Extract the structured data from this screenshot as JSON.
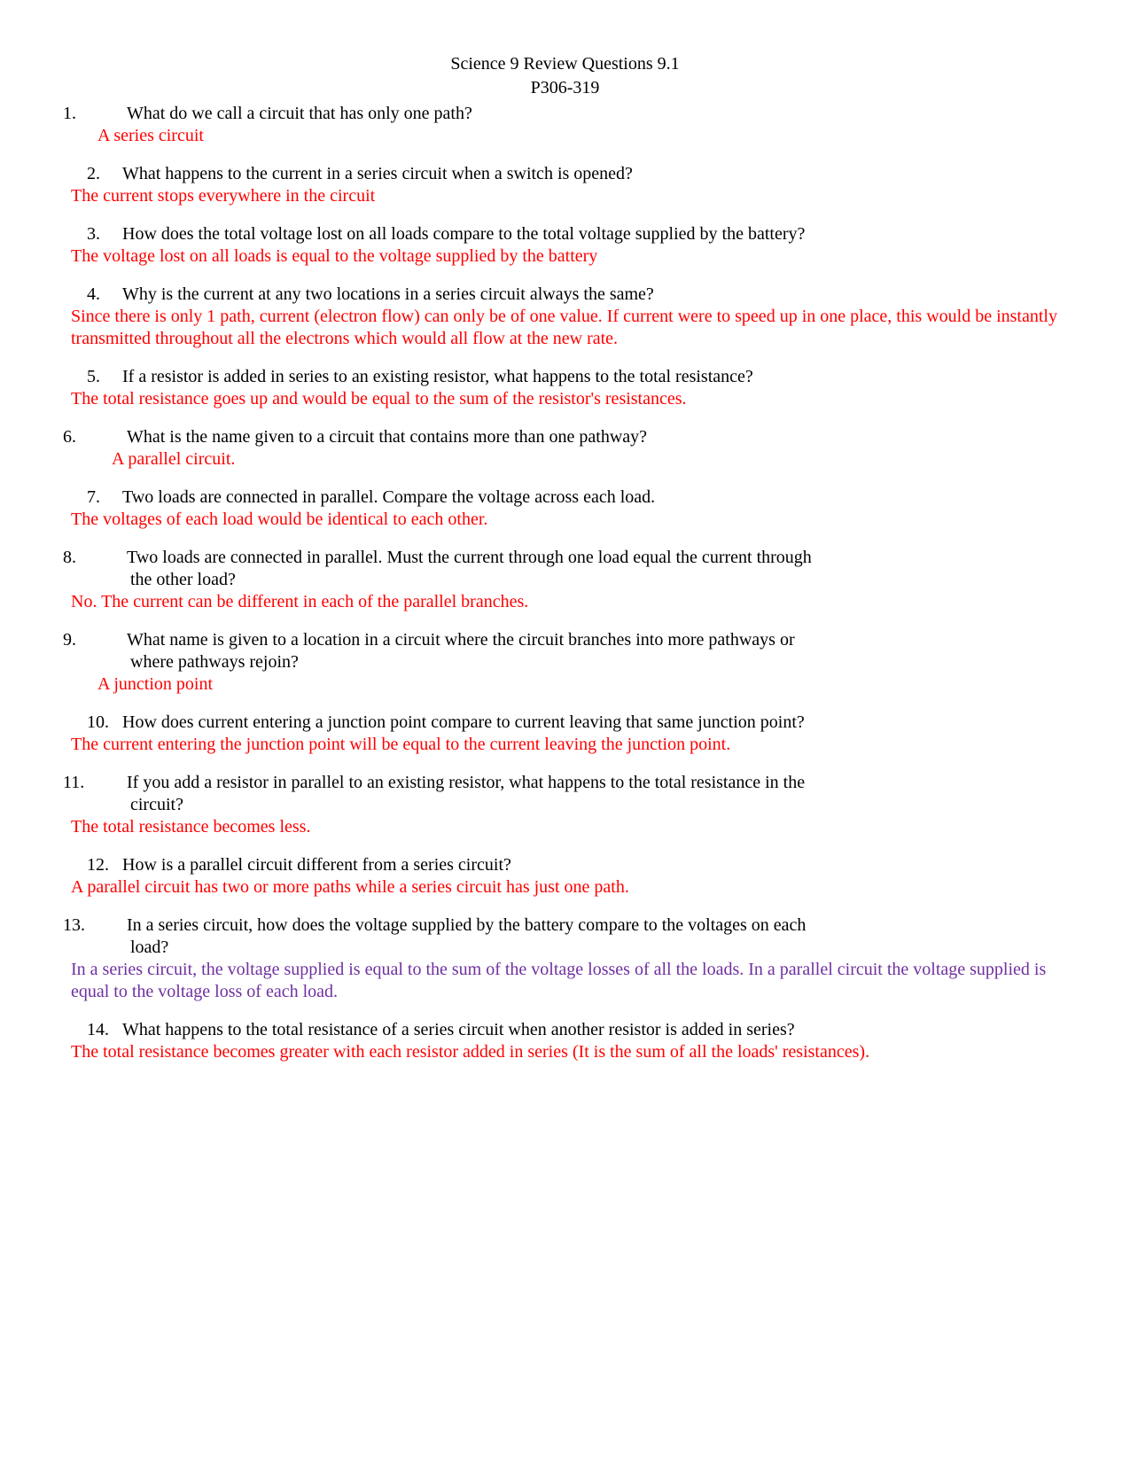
{
  "title": "Science 9 Review Questions 9.1",
  "subtitle": "P306-319",
  "items": [
    {
      "num": "1.",
      "q": "What do we call a circuit that has only one path?",
      "a": "A series circuit",
      "q_indent": "indent-more",
      "a_indent": "indent-a"
    },
    {
      "num": "2.",
      "q": "What happens to the current in a series circuit when a switch is opened?",
      "a": "The current stops everywhere in the circuit",
      "q_indent": "question-line",
      "a_indent": ""
    },
    {
      "num": "3.",
      "q": "How does the total voltage lost on all loads compare to the total voltage supplied by the battery?",
      "a": "The voltage lost on all loads is equal to the voltage supplied by the battery",
      "q_indent": "question-line",
      "a_indent": ""
    },
    {
      "num": "4.",
      "q": "Why is the current at any two locations in a series circuit always the same?",
      "a": "Since there is only 1 path, current (electron flow) can only be of one value.  If current were to speed up in one place, this would be instantly transmitted throughout all the electrons which would all flow at the new rate.",
      "q_indent": "question-line",
      "a_indent": ""
    },
    {
      "num": "5.",
      "q": "If a resistor is added in series to an existing resistor, what happens to the total resistance?",
      "a": "The total resistance goes up and would be equal to the sum of the resistor's resistances.",
      "q_indent": "question-line",
      "a_indent": ""
    },
    {
      "num": "6.",
      "q": "What is the name given to a circuit that contains more than one pathway?",
      "a": "A parallel circuit.",
      "q_indent": "indent-more",
      "a_indent": "indent-b"
    },
    {
      "num": "7.",
      "q": "Two loads are connected in parallel.  Compare the voltage across each load.",
      "a": "The voltages of each load would be identical to each other.",
      "q_indent": "question-line",
      "a_indent": ""
    },
    {
      "num": "8.",
      "q": "Two loads are connected in parallel.  Must the current through one load equal the current through",
      "q2": "the other load?",
      "a": "No.  The current can be different in each of the parallel branches.",
      "q_indent": "indent-more",
      "a_indent": ""
    },
    {
      "num": "9.",
      "q": "What name is given to a location in a circuit where the circuit branches into more pathways or",
      "q2": "where pathways rejoin?",
      "a": "A junction point",
      "q_indent": "indent-more",
      "a_indent": "indent-a"
    },
    {
      "num": "10.",
      "q": "How does current entering a junction point compare to current leaving that same junction point?",
      "a": "The current entering the junction point will be equal to the current leaving the junction point.",
      "q_indent": "question-line",
      "a_indent": ""
    },
    {
      "num": "11.",
      "q": "If you add a resistor in parallel to an existing resistor, what happens to the total resistance in the",
      "q2": "circuit?",
      "a": "The total resistance becomes less.",
      "q_indent": "indent-more",
      "a_indent": ""
    },
    {
      "num": "12.",
      "q": "How is a parallel circuit different from a series circuit?",
      "a": "A parallel circuit has two or more paths while a series circuit has just one path.",
      "q_indent": "question-line",
      "a_indent": ""
    },
    {
      "num": "13.",
      "q": "In a series circuit, how does the voltage supplied by the battery compare to the voltages on each",
      "q2": "load?",
      "a": "In a series circuit, the voltage supplied is equal to the sum of the voltage losses of all the loads.  In a parallel circuit the voltage supplied is equal to the voltage loss of each load.",
      "q_indent": "indent-more",
      "a_indent": "",
      "a_color": "purple"
    },
    {
      "num": "14.",
      "q": "What happens to the total resistance of a series circuit when another resistor is added in series?",
      "a": "The total resistance becomes greater with each resistor added in series (It is the sum of all the loads' resistances).",
      "q_indent": "question-line",
      "a_indent": ""
    }
  ]
}
